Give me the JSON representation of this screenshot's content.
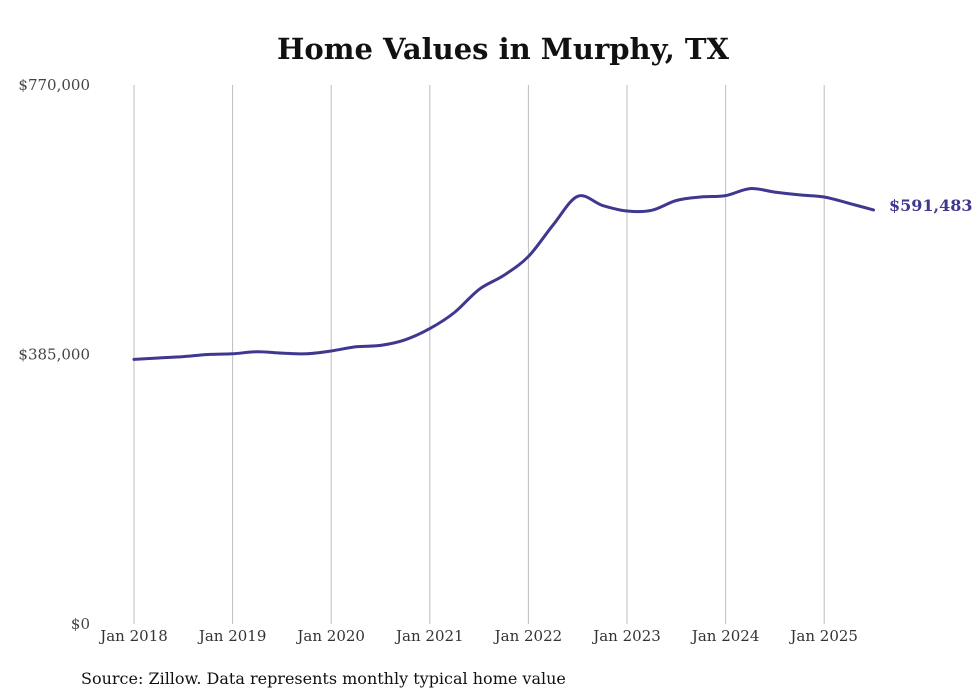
{
  "chart_data": {
    "type": "line",
    "title": "Home Values in Murphy, TX",
    "xlabel": "",
    "ylabel": "",
    "x_ticks": [
      "Jan 2018",
      "Jan 2019",
      "Jan 2020",
      "Jan 2021",
      "Jan 2022",
      "Jan 2023",
      "Jan 2024",
      "Jan 2025"
    ],
    "y_ticks": [
      "$770,000",
      "$385,000",
      "$0"
    ],
    "ylim": [
      0,
      770000
    ],
    "xlim": [
      "2018-01",
      "2025-07"
    ],
    "grid": "vertical",
    "legend": "none",
    "color": "#3f3790",
    "series": [
      {
        "values": [
          [
            "2018-01",
            378000
          ],
          [
            "2018-04",
            380000
          ],
          [
            "2018-07",
            382000
          ],
          [
            "2018-10",
            385000
          ],
          [
            "2019-01",
            386000
          ],
          [
            "2019-04",
            389000
          ],
          [
            "2019-07",
            387000
          ],
          [
            "2019-10",
            386000
          ],
          [
            "2020-01",
            390000
          ],
          [
            "2020-04",
            396000
          ],
          [
            "2020-07",
            398000
          ],
          [
            "2020-10",
            406000
          ],
          [
            "2021-01",
            422000
          ],
          [
            "2021-04",
            445000
          ],
          [
            "2021-07",
            478000
          ],
          [
            "2021-10",
            498000
          ],
          [
            "2022-01",
            525000
          ],
          [
            "2022-04",
            570000
          ],
          [
            "2022-07",
            611000
          ],
          [
            "2022-10",
            598000
          ],
          [
            "2023-01",
            590000
          ],
          [
            "2023-04",
            591000
          ],
          [
            "2023-07",
            605000
          ],
          [
            "2023-10",
            610000
          ],
          [
            "2024-01",
            612000
          ],
          [
            "2024-04",
            622000
          ],
          [
            "2024-07",
            617000
          ],
          [
            "2024-10",
            613000
          ],
          [
            "2025-01",
            610000
          ],
          [
            "2025-04",
            601000
          ],
          [
            "2025-07",
            591483
          ]
        ]
      }
    ],
    "end_label": "$591,483",
    "source": "Source: Zillow. Data represents monthly typical home value"
  }
}
